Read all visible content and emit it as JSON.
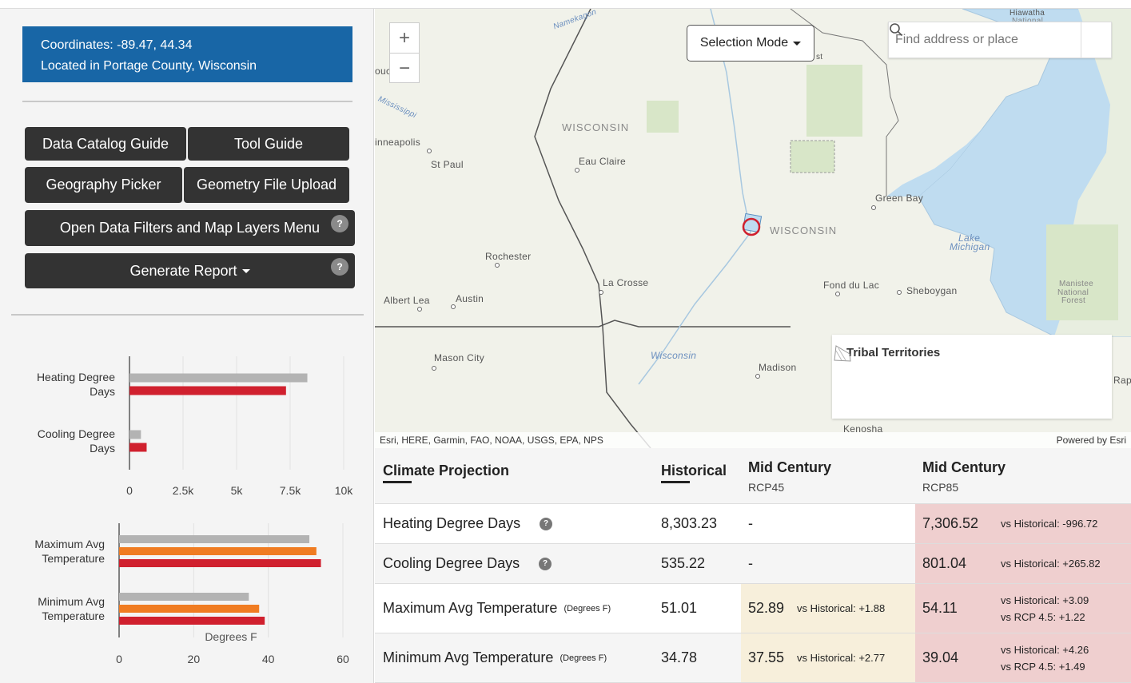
{
  "location": {
    "coordinates": "Coordinates: -89.47, 44.34",
    "located_in": "Located in Portage County, Wisconsin"
  },
  "buttons": {
    "data_catalog_guide": "Data Catalog Guide",
    "tool_guide": "Tool Guide",
    "geography_picker": "Geography Picker",
    "geometry_file_upload": "Geometry File Upload",
    "open_filters": "Open Data Filters and Map Layers Menu",
    "generate_report": "Generate Report",
    "help_glyph": "?"
  },
  "chart_data": [
    {
      "type": "bar",
      "orientation": "horizontal",
      "categories": [
        "Heating Degree Days",
        "Cooling Degree Days"
      ],
      "series": [
        {
          "color": "#b3b3b3",
          "values": [
            8303.23,
            535.22
          ]
        },
        {
          "color": "#d0202e",
          "values": [
            7306.52,
            801.04
          ]
        }
      ],
      "xlim": [
        0,
        10000
      ],
      "xticks": [
        "0",
        "2.5k",
        "5k",
        "7.5k",
        "10k"
      ],
      "xlabel": "",
      "grid": true
    },
    {
      "type": "bar",
      "orientation": "horizontal",
      "categories": [
        "Maximum Avg Temperature",
        "Minimum Avg Temperature"
      ],
      "series": [
        {
          "color": "#b3b3b3",
          "values": [
            51.01,
            34.78
          ]
        },
        {
          "color": "#f07c22",
          "values": [
            52.89,
            37.55
          ]
        },
        {
          "color": "#d0202e",
          "values": [
            54.11,
            39.04
          ]
        }
      ],
      "xlim": [
        0,
        60
      ],
      "xticks": [
        "0",
        "20",
        "40",
        "60"
      ],
      "xlabel": "Degrees F",
      "grid": true
    }
  ],
  "map": {
    "zoom_in": "+",
    "zoom_out": "−",
    "selection_mode": "Selection Mode",
    "search_placeholder": "Find address or place",
    "labels": {
      "wisconsin_state": "WISCONSIN",
      "wisconsin_point": "WISCONSIN",
      "minneapolis": "inneapolis",
      "st_paul": "St Paul",
      "eau_claire": "Eau Claire",
      "green_bay": "Green Bay",
      "lake_michigan_1": "Lake",
      "lake_michigan_2": "Michigan",
      "rochester": "Rochester",
      "la_crosse": "La Crosse",
      "fond_du_lac": "Fond du Lac",
      "sheboygan": "Sheboygan",
      "albert_lea": "Albert Lea",
      "austin": "Austin",
      "mason_city": "Mason City",
      "madison": "Madison",
      "kenosha": "Kenosha",
      "wisconsin_river": "Wisconsin",
      "mississippi": "Mississippi",
      "hiawatha_1": "Hiawatha",
      "hiawatha_2": "National",
      "manistee_1": "Manistee",
      "manistee_2": "National",
      "manistee_3": "Forest",
      "namekagon": "Namekagon",
      "fragment_ouc": "ouc",
      "fragment_rap": "Rap",
      "fragment_st": "st"
    },
    "legend_title": "Tribal Territories",
    "attribution": "Esri, HERE, Garmin, FAO, NOAA, USGS, EPA, NPS",
    "powered_by": "Powered by Esri"
  },
  "table": {
    "headers": {
      "projection": "Climate Projection",
      "historical": "Historical",
      "rcp45_title": "Mid Century",
      "rcp45_sub": "RCP45",
      "rcp85_title": "Mid Century",
      "rcp85_sub": "RCP85"
    },
    "colors": {
      "rcp45_bg": "#f7efdb",
      "rcp85_bg": "#efcfcf"
    },
    "rows": [
      {
        "name": "Heating Degree Days",
        "unit": "",
        "historical": "8,303.23",
        "rcp45": "-",
        "rcp45_vs": "",
        "rcp85": "7,306.52",
        "rcp85_vs1": "vs Historical: -996.72",
        "rcp85_vs2": ""
      },
      {
        "name": "Cooling Degree Days",
        "unit": "",
        "historical": "535.22",
        "rcp45": "-",
        "rcp45_vs": "",
        "rcp85": "801.04",
        "rcp85_vs1": "vs Historical: +265.82",
        "rcp85_vs2": ""
      },
      {
        "name": "Maximum Avg Temperature",
        "unit": "(Degrees F)",
        "historical": "51.01",
        "rcp45": "52.89",
        "rcp45_vs": "vs Historical: +1.88",
        "rcp85": "54.11",
        "rcp85_vs1": "vs Historical: +3.09",
        "rcp85_vs2": "vs RCP 4.5: +1.22"
      },
      {
        "name": "Minimum Avg Temperature",
        "unit": "(Degrees F)",
        "historical": "34.78",
        "rcp45": "37.55",
        "rcp45_vs": "vs Historical: +2.77",
        "rcp85": "39.04",
        "rcp85_vs1": "vs Historical: +4.26",
        "rcp85_vs2": "vs RCP 4.5: +1.49"
      }
    ]
  }
}
